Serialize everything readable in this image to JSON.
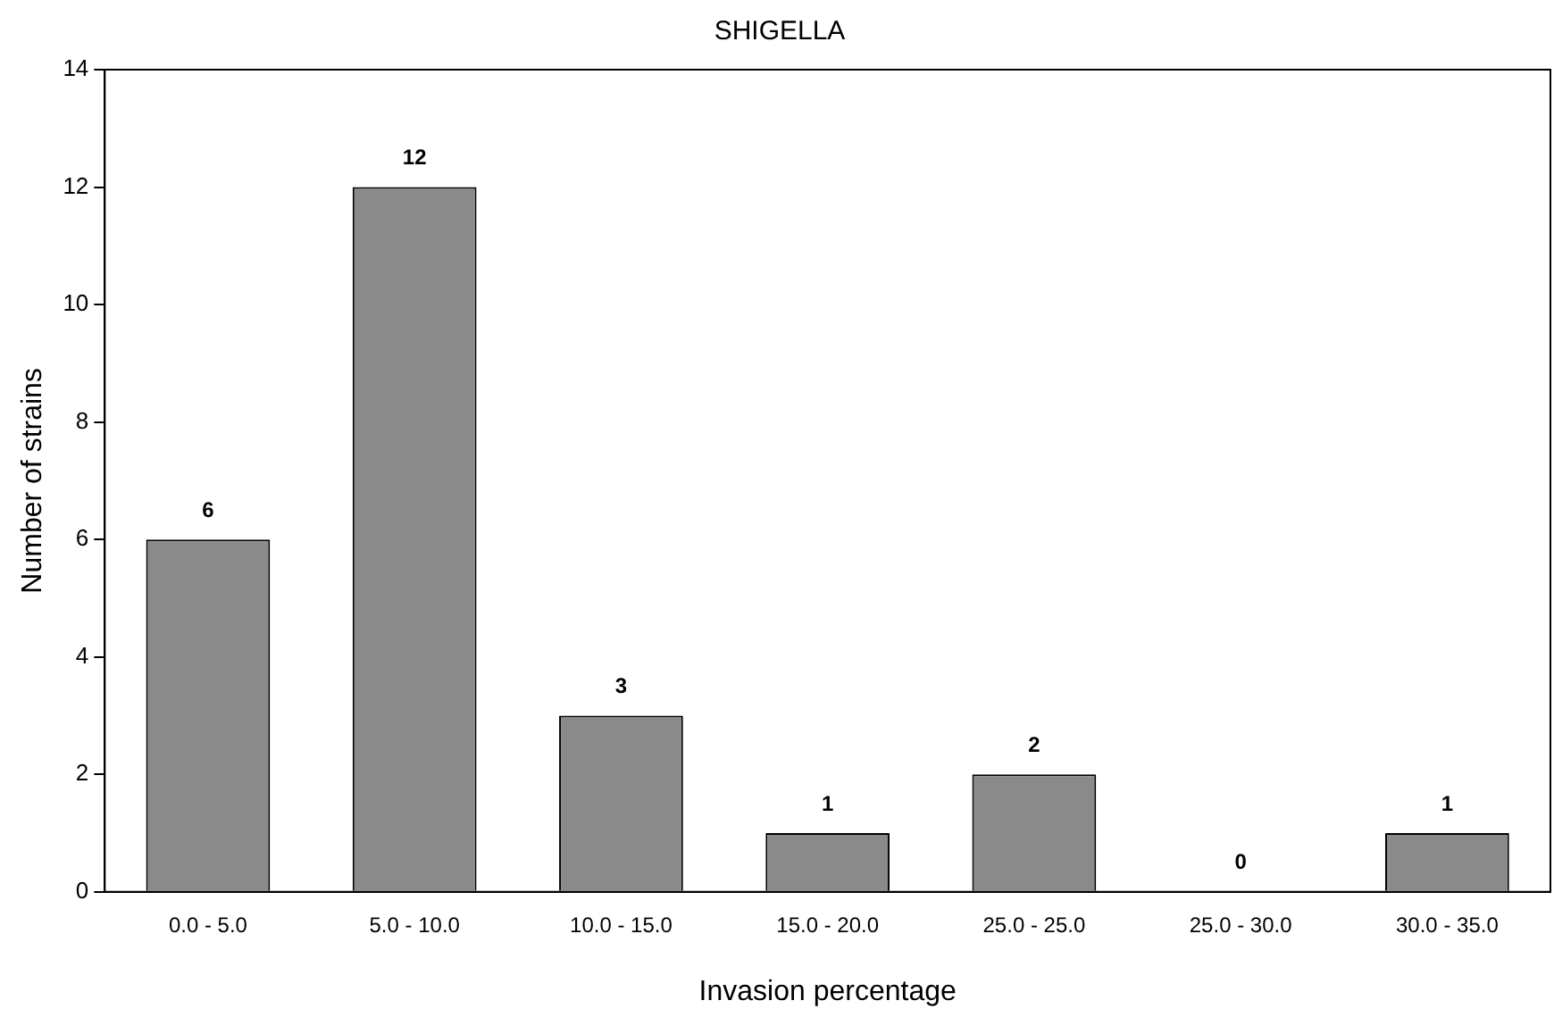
{
  "chart_data": {
    "type": "bar",
    "title": "SHIGELLA",
    "xlabel": "Invasion percentage",
    "ylabel": "Number of strains",
    "categories": [
      "0.0 - 5.0",
      "5.0 - 10.0",
      "10.0 - 15.0",
      "15.0 - 20.0",
      "25.0 - 25.0",
      "25.0 - 30.0",
      "30.0 - 35.0"
    ],
    "values": [
      6,
      12,
      3,
      1,
      2,
      0,
      1
    ],
    "color": "#8a8a8a",
    "ylim": [
      0,
      14
    ],
    "yticks": [
      0,
      2,
      4,
      6,
      8,
      10,
      12,
      14
    ],
    "grid": false,
    "legend": false,
    "data_labels": true
  }
}
